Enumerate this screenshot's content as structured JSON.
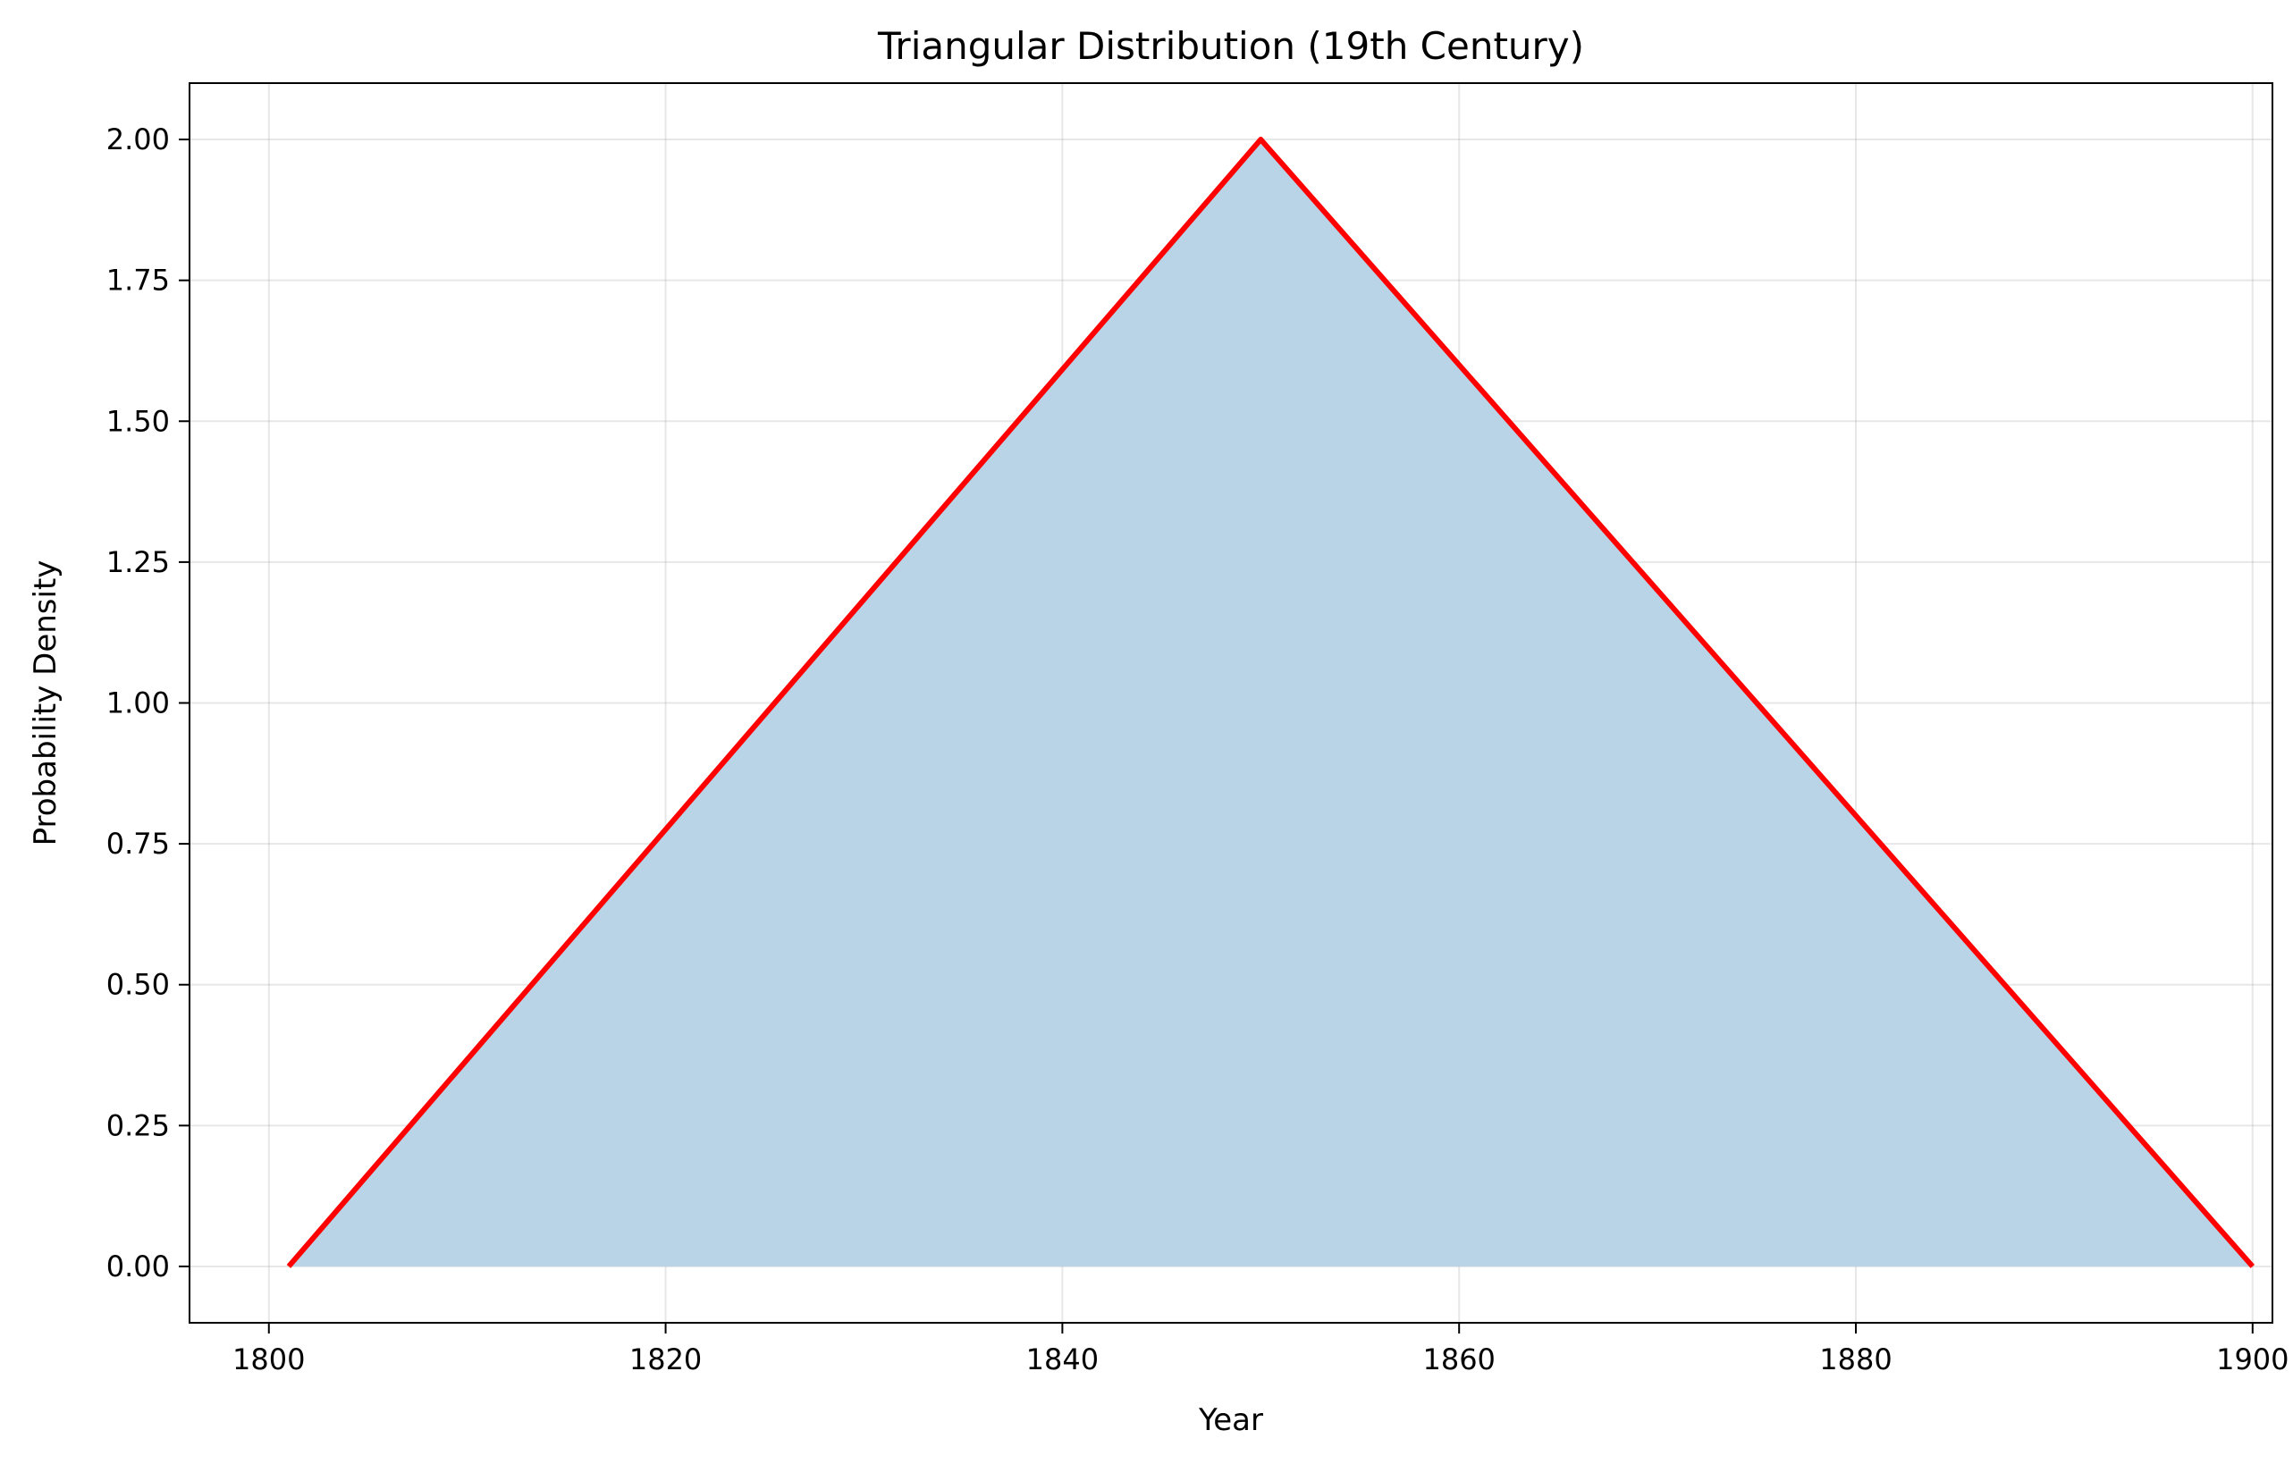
{
  "chart_data": {
    "type": "area",
    "title": "Triangular Distribution (19th Century)",
    "xlabel": "Year",
    "ylabel": "Probability Density",
    "xlim": [
      1796,
      1901
    ],
    "ylim": [
      -0.1,
      2.1
    ],
    "xticks": [
      1800,
      1820,
      1840,
      1860,
      1880,
      1900
    ],
    "yticks": [
      0.0,
      0.25,
      0.5,
      0.75,
      1.0,
      1.25,
      1.5,
      1.75,
      2.0
    ],
    "xtick_labels": [
      "1800",
      "1820",
      "1840",
      "1860",
      "1880",
      "1900"
    ],
    "ytick_labels": [
      "0.00",
      "0.25",
      "0.50",
      "0.75",
      "1.00",
      "1.25",
      "1.50",
      "1.75",
      "2.00"
    ],
    "grid": true,
    "legend": "none",
    "series": [
      {
        "x": [
          1801,
          1850,
          1900
        ],
        "y": [
          0.0,
          2.0,
          0.0
        ],
        "line_color": "#ff0000",
        "fill_color": "#b9d4e7"
      }
    ]
  }
}
